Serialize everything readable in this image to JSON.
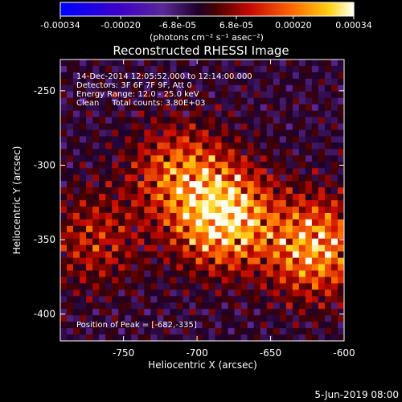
{
  "colorbar": {
    "tick_labels": [
      "-0.00034",
      "-0.00020",
      "-6.8e-05",
      "6.8e-05",
      "0.00020",
      "0.00034"
    ],
    "unit_label": "(photons cm⁻² s⁻¹ asec⁻²)",
    "range": [
      -0.00034,
      0.00034
    ]
  },
  "chart_data": {
    "type": "heatmap",
    "title": "Reconstructed RHESSI Image",
    "xlabel": "Heliocentric X (arcsec)",
    "ylabel": "Heliocentric Y (arcsec)",
    "xlim": [
      -793,
      -600
    ],
    "ylim": [
      -418,
      -229
    ],
    "x_ticks": [
      -750,
      -700,
      -650,
      -600
    ],
    "y_ticks": [
      -400,
      -350,
      -300,
      -250
    ],
    "x_tick_labels": [
      "-750",
      "-700",
      "-650",
      "-600"
    ],
    "y_tick_labels": [
      "-400",
      "-350",
      "-300",
      "-250"
    ],
    "sources": [
      {
        "x": -682,
        "y": -335,
        "strength": 1.0
      },
      {
        "x": -712,
        "y": -305,
        "strength": 0.55
      },
      {
        "x": -620,
        "y": -355,
        "strength": 0.8
      },
      {
        "x": -770,
        "y": -350,
        "strength": 0.35
      }
    ],
    "peak": {
      "x": -682,
      "y": -335
    }
  },
  "annotations": [
    "14-Dec-2014 12:05:52.000 to 12:14:00.000",
    "Detectors: 3F 6F 7F 9F, Att 0",
    "Energy Range: 12.0 - 25.0 keV",
    "Clean     Total counts: 3.80E+03"
  ],
  "peak_label": "Position of Peak = [-682,-335]",
  "footer_date": "5-Jun-2019 08:00"
}
